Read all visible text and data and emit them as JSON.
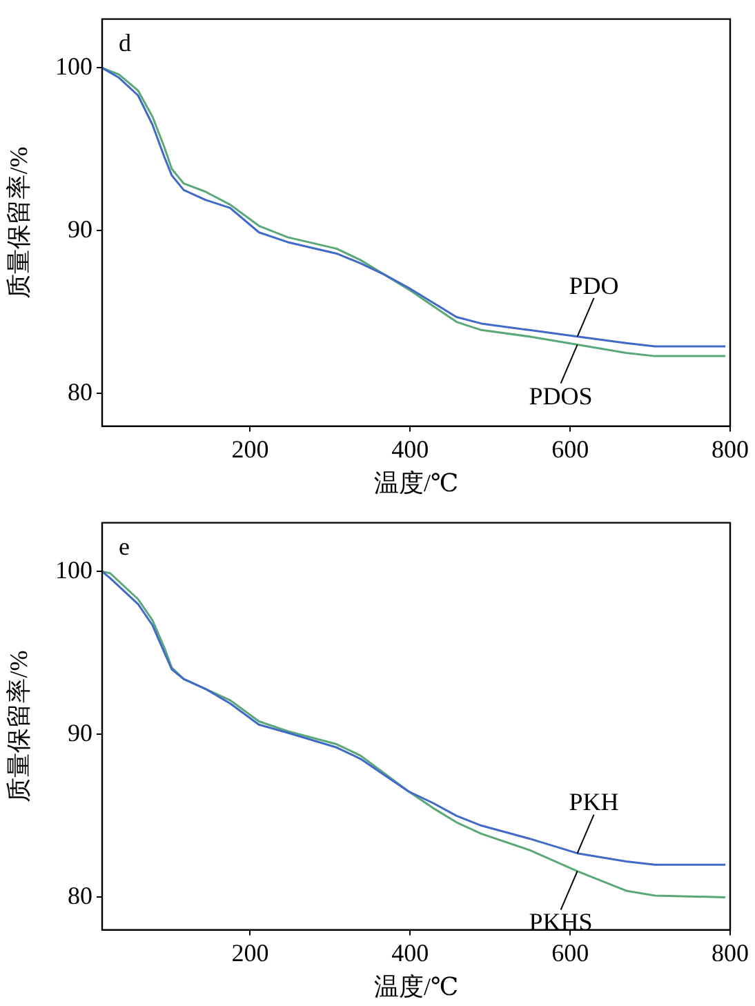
{
  "chart_data": [
    {
      "type": "line",
      "title": "d",
      "xlabel": "温度/℃",
      "ylabel": "质量保留率/%",
      "x": [
        15,
        36,
        60,
        78,
        93,
        102,
        117,
        144,
        175,
        211,
        247,
        308,
        338,
        368,
        398,
        428,
        458,
        489,
        549,
        609,
        670,
        706,
        794
      ],
      "series": [
        {
          "name": "PDO",
          "color": "#4169c8",
          "values": [
            100,
            99.4,
            98.3,
            96.5,
            94.5,
            93.4,
            92.5,
            91.9,
            91.4,
            89.9,
            89.3,
            88.6,
            88.0,
            87.3,
            86.5,
            85.6,
            84.7,
            84.3,
            83.9,
            83.5,
            83.1,
            82.9,
            82.9
          ]
        },
        {
          "name": "PDOS",
          "color": "#5aa878",
          "values": [
            100,
            99.6,
            98.6,
            97.0,
            95.1,
            93.8,
            92.9,
            92.4,
            91.6,
            90.3,
            89.6,
            88.9,
            88.2,
            87.3,
            86.4,
            85.4,
            84.4,
            83.9,
            83.5,
            83.0,
            82.5,
            82.3,
            82.3
          ]
        }
      ],
      "xlim": [
        15,
        800
      ],
      "xticks": [
        200,
        400,
        600,
        800
      ],
      "ylim": [
        78,
        103
      ],
      "yticks": [
        80,
        90,
        100
      ],
      "grid": false,
      "legend": false
    },
    {
      "type": "line",
      "title": "e",
      "xlabel": "温度/℃",
      "ylabel": "质量保留率/%",
      "x": [
        15,
        25,
        60,
        78,
        93,
        102,
        117,
        144,
        175,
        211,
        247,
        308,
        338,
        368,
        398,
        428,
        458,
        489,
        549,
        609,
        670,
        706,
        794
      ],
      "series": [
        {
          "name": "PKH",
          "color": "#4169c8",
          "values": [
            100,
            99.6,
            98.0,
            96.7,
            95.0,
            94.0,
            93.4,
            92.8,
            91.9,
            90.6,
            90.1,
            89.2,
            88.5,
            87.5,
            86.5,
            85.8,
            85.0,
            84.4,
            83.6,
            82.7,
            82.2,
            82.0,
            82.0
          ]
        },
        {
          "name": "PKHS",
          "color": "#5aa878",
          "values": [
            100,
            99.9,
            98.3,
            97.0,
            95.3,
            94.1,
            93.4,
            92.8,
            92.1,
            90.8,
            90.2,
            89.4,
            88.7,
            87.6,
            86.5,
            85.5,
            84.6,
            83.9,
            82.9,
            81.6,
            80.4,
            80.1,
            80.0
          ]
        }
      ],
      "xlim": [
        15,
        800
      ],
      "xticks": [
        200,
        400,
        600,
        800
      ],
      "ylim": [
        78,
        103
      ],
      "yticks": [
        80,
        90,
        100
      ],
      "grid": false,
      "legend": false
    }
  ]
}
